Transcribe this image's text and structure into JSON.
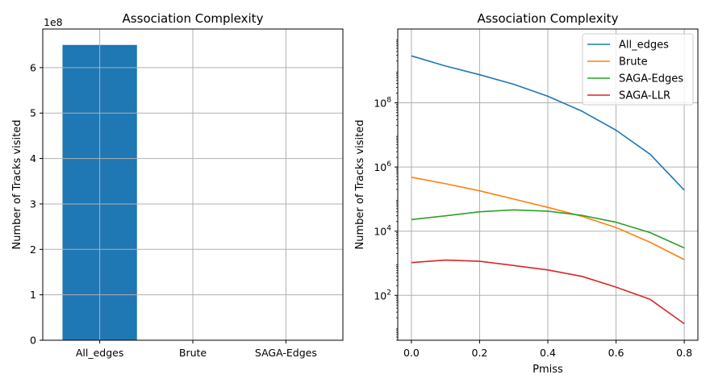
{
  "chart_data": [
    {
      "type": "bar",
      "title": "Association Complexity",
      "xlabel": "",
      "ylabel": "Number of Tracks visited",
      "offset_label": "1e8",
      "categories": [
        "All_edges",
        "Brute",
        "SAGA-Edges"
      ],
      "values": [
        6.5,
        5e-06,
        0.00026
      ],
      "value_multiplier": 100000000,
      "ylim": [
        0,
        6.85
      ],
      "yticks": [
        0,
        1,
        2,
        3,
        4,
        5,
        6
      ],
      "bar_color": "#1f77b4",
      "grid": true
    },
    {
      "type": "line",
      "title": "Association Complexity",
      "xlabel": "Pmiss",
      "ylabel": "Number of Tracks visited",
      "yscale": "log",
      "xlim": [
        -0.04,
        0.84
      ],
      "ylim_log10": [
        0.6,
        10.3
      ],
      "xticks": [
        "0.0",
        "0.2",
        "0.4",
        "0.6",
        "0.8"
      ],
      "yticks_exp": [
        2,
        4,
        6,
        8
      ],
      "x": [
        0.0,
        0.1,
        0.2,
        0.3,
        0.4,
        0.5,
        0.6,
        0.7,
        0.8
      ],
      "series": [
        {
          "name": "All_edges",
          "color": "#1f77b4",
          "values": [
            2900000000,
            1400000000,
            750000000,
            380000000,
            160000000,
            55000000,
            14000000,
            2500000,
            190000
          ]
        },
        {
          "name": "Brute",
          "color": "#ff7f0e",
          "values": [
            480000,
            300000,
            180000,
            100000,
            55000,
            29000,
            13000,
            4500,
            1300
          ]
        },
        {
          "name": "SAGA-Edges",
          "color": "#2ca02c",
          "values": [
            23000,
            30000,
            40000,
            46000,
            42000,
            31000,
            19000,
            9000,
            3000
          ]
        },
        {
          "name": "SAGA-LLR",
          "color": "#d62728",
          "values": [
            1050,
            1250,
            1150,
            850,
            620,
            390,
            180,
            75,
            13
          ]
        }
      ],
      "legend_position": "upper right",
      "grid": true
    }
  ]
}
